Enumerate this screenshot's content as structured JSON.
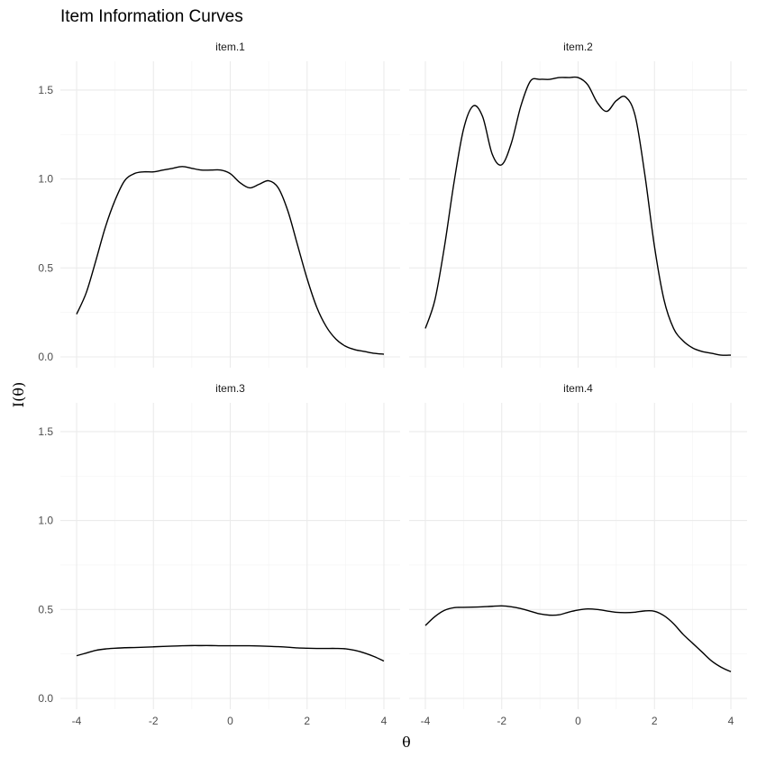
{
  "chart_data": {
    "type": "line",
    "title": "Item Information Curves",
    "xlabel": "θ",
    "ylabel": "I(θ)",
    "xlim": [
      -4,
      4
    ],
    "ylim": [
      0,
      1.6
    ],
    "xticks": [
      -4,
      -2,
      0,
      2,
      4
    ],
    "yticks": [
      0.0,
      0.5,
      1.0,
      1.5
    ],
    "ytick_labels": [
      "0.0",
      "0.5",
      "1.0",
      "1.5"
    ],
    "xtick_labels": [
      "-4",
      "-2",
      "0",
      "2",
      "4"
    ],
    "grid": true,
    "panels": [
      {
        "name": "item.1",
        "x": [
          -4,
          -3.75,
          -3.5,
          -3.25,
          -3,
          -2.75,
          -2.5,
          -2.25,
          -2,
          -1.75,
          -1.5,
          -1.25,
          -1,
          -0.75,
          -0.5,
          -0.25,
          0,
          0.25,
          0.5,
          0.75,
          1,
          1.25,
          1.5,
          1.75,
          2,
          2.25,
          2.5,
          2.75,
          3,
          3.25,
          3.5,
          3.75,
          4
        ],
        "y": [
          0.24,
          0.36,
          0.54,
          0.73,
          0.88,
          0.99,
          1.03,
          1.04,
          1.04,
          1.05,
          1.06,
          1.07,
          1.06,
          1.05,
          1.05,
          1.05,
          1.03,
          0.98,
          0.95,
          0.97,
          0.99,
          0.95,
          0.82,
          0.63,
          0.44,
          0.28,
          0.17,
          0.1,
          0.06,
          0.04,
          0.03,
          0.02,
          0.015
        ]
      },
      {
        "name": "item.2",
        "x": [
          -4,
          -3.75,
          -3.5,
          -3.25,
          -3,
          -2.75,
          -2.5,
          -2.25,
          -2,
          -1.75,
          -1.5,
          -1.25,
          -1,
          -0.75,
          -0.5,
          -0.25,
          0,
          0.25,
          0.5,
          0.75,
          1,
          1.25,
          1.5,
          1.75,
          2,
          2.25,
          2.5,
          2.75,
          3,
          3.25,
          3.5,
          3.75,
          4
        ],
        "y": [
          0.16,
          0.32,
          0.62,
          0.98,
          1.28,
          1.41,
          1.35,
          1.14,
          1.08,
          1.2,
          1.41,
          1.55,
          1.56,
          1.56,
          1.57,
          1.57,
          1.57,
          1.53,
          1.43,
          1.38,
          1.44,
          1.46,
          1.35,
          1.02,
          0.62,
          0.32,
          0.16,
          0.09,
          0.05,
          0.03,
          0.02,
          0.01,
          0.01
        ]
      },
      {
        "name": "item.3",
        "x": [
          -4,
          -3.75,
          -3.5,
          -3.25,
          -3,
          -2.75,
          -2.5,
          -2.25,
          -2,
          -1.75,
          -1.5,
          -1.25,
          -1,
          -0.75,
          -0.5,
          -0.25,
          0,
          0.25,
          0.5,
          0.75,
          1,
          1.25,
          1.5,
          1.75,
          2,
          2.25,
          2.5,
          2.75,
          3,
          3.25,
          3.5,
          3.75,
          4
        ],
        "y": [
          0.24,
          0.255,
          0.27,
          0.278,
          0.282,
          0.285,
          0.286,
          0.288,
          0.29,
          0.292,
          0.294,
          0.296,
          0.297,
          0.297,
          0.297,
          0.296,
          0.296,
          0.296,
          0.296,
          0.295,
          0.293,
          0.291,
          0.288,
          0.284,
          0.282,
          0.281,
          0.281,
          0.281,
          0.279,
          0.27,
          0.255,
          0.235,
          0.21
        ]
      },
      {
        "name": "item.4",
        "x": [
          -4,
          -3.75,
          -3.5,
          -3.25,
          -3,
          -2.75,
          -2.5,
          -2.25,
          -2,
          -1.75,
          -1.5,
          -1.25,
          -1,
          -0.75,
          -0.5,
          -0.25,
          0,
          0.25,
          0.5,
          0.75,
          1,
          1.25,
          1.5,
          1.75,
          2,
          2.25,
          2.5,
          2.75,
          3,
          3.25,
          3.5,
          3.75,
          4
        ],
        "y": [
          0.41,
          0.46,
          0.495,
          0.51,
          0.512,
          0.513,
          0.515,
          0.518,
          0.52,
          0.515,
          0.505,
          0.49,
          0.475,
          0.468,
          0.47,
          0.485,
          0.497,
          0.503,
          0.5,
          0.492,
          0.484,
          0.482,
          0.485,
          0.492,
          0.49,
          0.465,
          0.42,
          0.36,
          0.31,
          0.26,
          0.21,
          0.175,
          0.15
        ]
      }
    ]
  }
}
